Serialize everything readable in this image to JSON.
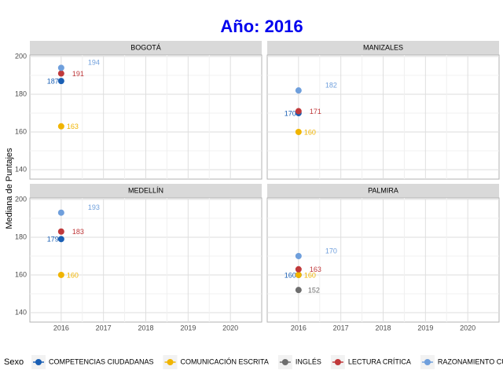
{
  "chart_data": {
    "type": "scatter",
    "title": "Año: 2016",
    "y_label": "Mediana de Puntajes",
    "legend_title": "Sexo",
    "xlim": [
      2015.26,
      2020.74
    ],
    "xticks": [
      2016,
      2017,
      2018,
      2019,
      2020
    ],
    "ylim": [
      135,
      200.8
    ],
    "yticks": [
      140,
      160,
      180,
      200
    ],
    "grid": true,
    "series": [
      {
        "name": "COMPETENCIAS CIUDADANAS",
        "color": "#1a5fb4"
      },
      {
        "name": "COMUNICACIÓN ESCRITA",
        "color": "#f0b400"
      },
      {
        "name": "INGLÉS",
        "color": "#6e6e6e"
      },
      {
        "name": "LECTURA CRÍTICA",
        "color": "#c0393b"
      },
      {
        "name": "RAZONAMIENTO CUANTITATIVO",
        "color": "#6f9fdc"
      }
    ],
    "facets": [
      {
        "title": "BOGOTÁ",
        "x": [
          2016
        ],
        "values": [
          [
            187
          ],
          [
            163
          ],
          [
            null
          ],
          [
            191
          ],
          [
            194
          ]
        ]
      },
      {
        "title": "MANIZALES",
        "x": [
          2016
        ],
        "values": [
          [
            170
          ],
          [
            160
          ],
          [
            null
          ],
          [
            171
          ],
          [
            182
          ]
        ]
      },
      {
        "title": "MEDELLÍN",
        "x": [
          2016
        ],
        "values": [
          [
            179
          ],
          [
            160
          ],
          [
            null
          ],
          [
            183
          ],
          [
            193
          ]
        ]
      },
      {
        "title": "PALMIRA",
        "x": [
          2016
        ],
        "values": [
          [
            160
          ],
          [
            160
          ],
          [
            152
          ],
          [
            163
          ],
          [
            170
          ]
        ]
      }
    ]
  }
}
